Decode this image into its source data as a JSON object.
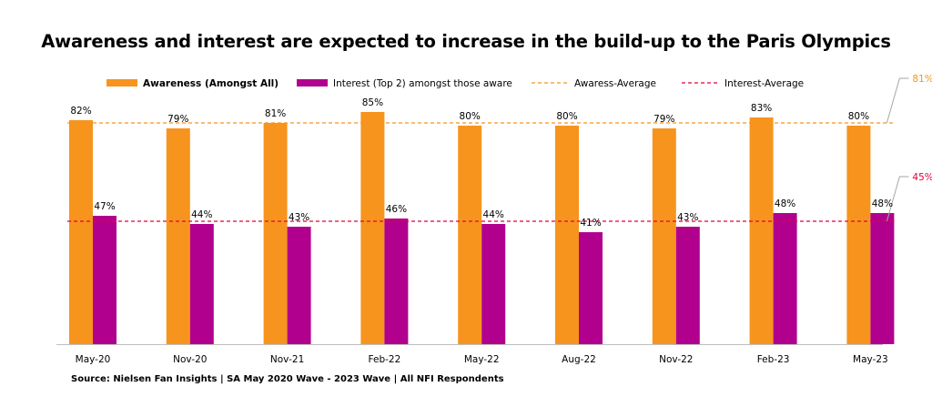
{
  "chart_data": {
    "type": "bar",
    "title": "Awareness and interest are expected to increase in the build-up to the Paris Olympics",
    "categories": [
      "May-20",
      "Nov-20",
      "Nov-21",
      "Feb-22",
      "May-22",
      "Aug-22",
      "Nov-22",
      "Feb-23",
      "May-23"
    ],
    "series": [
      {
        "name": "Awareness (Amongst All)",
        "values": [
          82,
          79,
          81,
          85,
          80,
          80,
          79,
          83,
          80
        ],
        "color": "#F7941D",
        "labels": [
          "82%",
          "79%",
          "81%",
          "85%",
          "80%",
          "80%",
          "79%",
          "83%",
          "80%"
        ]
      },
      {
        "name": "Interest (Top 2) amongst those aware",
        "values": [
          47,
          44,
          43,
          46,
          44,
          41,
          43,
          48,
          48
        ],
        "color": "#B1008E",
        "labels": [
          "47%",
          "44%",
          "43%",
          "46%",
          "44%",
          "41%",
          "43%",
          "48%",
          "48%"
        ]
      }
    ],
    "reference_lines": [
      {
        "name": "Awaress-Average",
        "value": 81,
        "label": "81%",
        "color": "#F7941D",
        "style": "dashed"
      },
      {
        "name": "Interest-Average",
        "value": 45,
        "label": "45%",
        "color": "#E4003A",
        "style": "dashed"
      }
    ],
    "ylim": [
      0,
      100
    ],
    "xlabel": "",
    "ylabel": "",
    "grid": false,
    "legend_position": "top"
  },
  "source": "Source: Nielsen Fan Insights | SA May 2020 Wave - 2023 Wave | All NFI Respondents"
}
